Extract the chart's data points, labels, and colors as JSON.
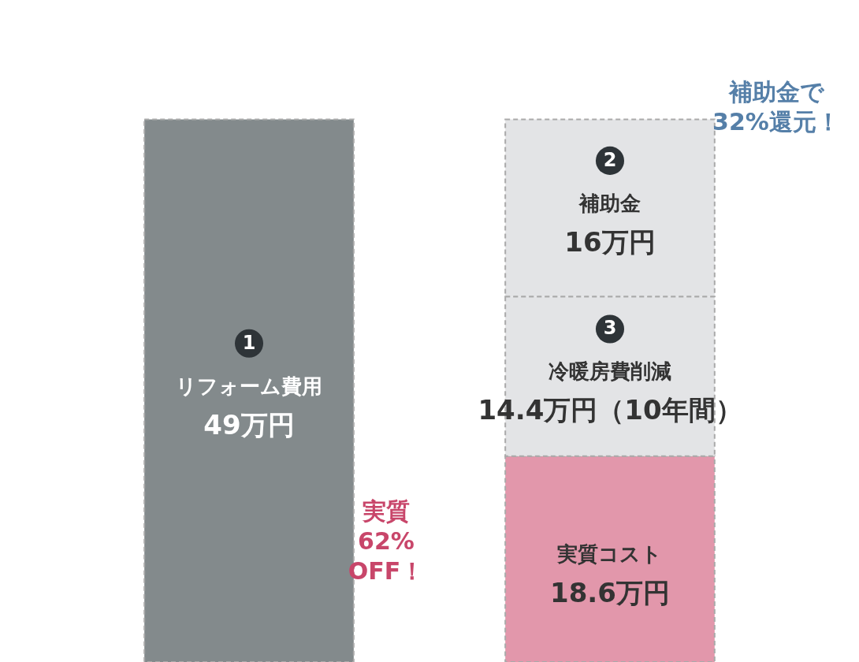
{
  "chart_data": {
    "type": "bar",
    "stacked": true,
    "tick_labels": false,
    "grid": false,
    "categories": [
      null,
      null
    ],
    "series": [
      {
        "name": "リフォーム費用",
        "color": "#838a8c",
        "values": [
          49,
          null
        ],
        "value_labels": [
          "49万円",
          null
        ]
      },
      {
        "name": "実質コスト",
        "color": "#e297ab",
        "values": [
          null,
          18.6
        ],
        "value_labels": [
          null,
          "18.6万円"
        ]
      },
      {
        "name": "冷暖房費削減",
        "color": "#e3e4e6",
        "values": [
          null,
          14.4
        ],
        "value_labels": [
          null,
          "14.4万円（10年間）"
        ]
      },
      {
        "name": "補助金",
        "color": "#e3e4e6",
        "values": [
          null,
          16
        ],
        "value_labels": [
          null,
          "16万円"
        ]
      }
    ],
    "annotations": [
      "1",
      "3",
      "2",
      "補助金で32%還元！",
      "実質62%OFF！"
    ]
  }
}
